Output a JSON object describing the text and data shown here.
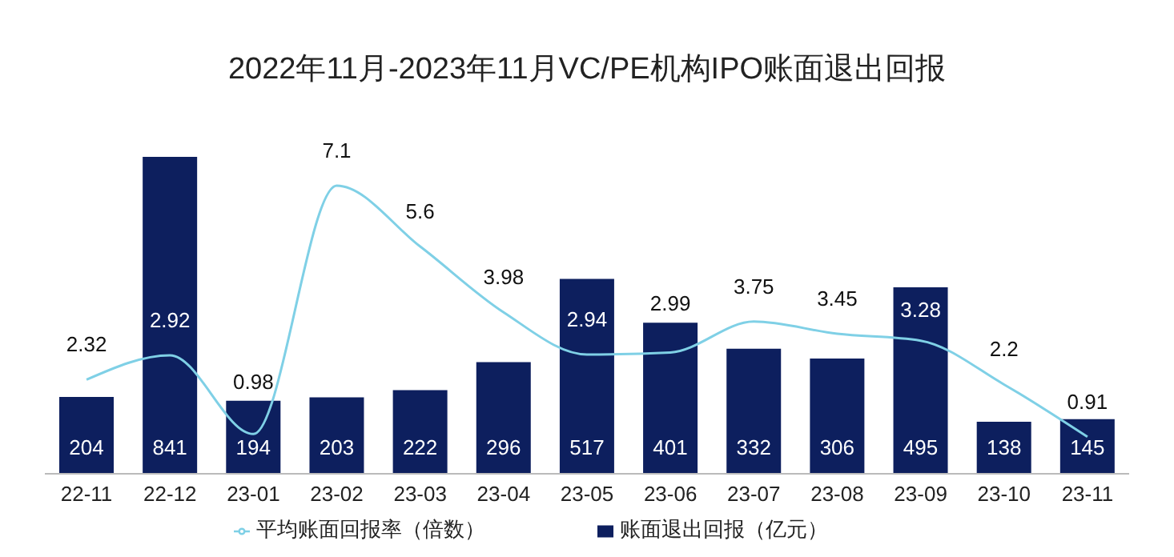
{
  "chart_data": {
    "type": "bar",
    "title": "2022年11月-2023年11月VC/PE机构IPO账面退出回报",
    "categories": [
      "22-11",
      "22-12",
      "23-01",
      "23-02",
      "23-03",
      "23-04",
      "23-05",
      "23-06",
      "23-07",
      "23-08",
      "23-09",
      "23-10",
      "23-11"
    ],
    "series": [
      {
        "name": "账面退出回报（亿元）",
        "color": "#0d1f5e",
        "values": [
          204,
          841,
          194,
          203,
          222,
          296,
          517,
          401,
          332,
          306,
          495,
          138,
          145
        ]
      },
      {
        "name": "平均账面回报率（倍数）",
        "type": "line",
        "axis": "y2",
        "color": "#7fd0e6",
        "values": [
          2.32,
          2.92,
          0.98,
          7.1,
          5.6,
          3.98,
          2.94,
          2.99,
          3.75,
          3.45,
          3.28,
          2.2,
          0.91
        ]
      }
    ],
    "data_labels": true,
    "legend": "bottom",
    "marker": "none"
  }
}
